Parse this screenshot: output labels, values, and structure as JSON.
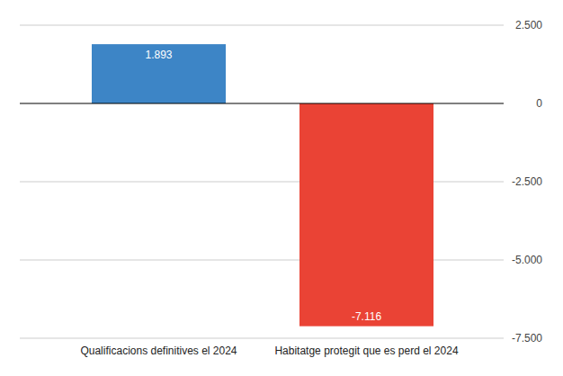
{
  "chart_data": {
    "type": "bar",
    "categories": [
      "Qualificacions definitives el 2024",
      "Habitatge protegit que es perd el 2024"
    ],
    "values": [
      1893,
      -7116
    ],
    "value_labels": [
      "1.893",
      "-7.116"
    ],
    "colors": [
      "#3d85c6",
      "#ea4335"
    ],
    "ylim": [
      -7500,
      2500
    ],
    "yticks": [
      {
        "value": 2500,
        "label": "2.500"
      },
      0,
      {
        "value": -2500,
        "label": "-2.500"
      },
      {
        "value": -5000,
        "label": "-5.000"
      },
      {
        "value": -7500,
        "label": "-7.500"
      }
    ],
    "grid": true,
    "data_labels": true
  }
}
